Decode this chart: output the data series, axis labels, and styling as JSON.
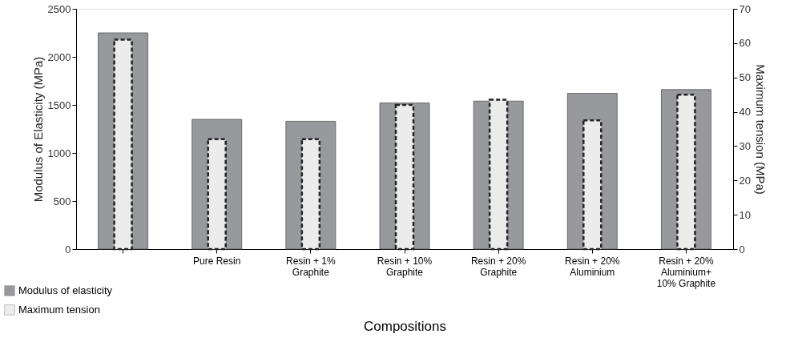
{
  "chart_data": {
    "type": "bar",
    "xlabel": "Compositions",
    "ylabel": "Modulus of Elasticity (MPa)",
    "y2label": "Maximum tension (MPa)",
    "categories": [
      null,
      "Pure Resin",
      "Resin + 1% Graphite",
      "Resin + 10% Graphite",
      "Resin + 20% Graphite",
      "Resin + 20% Aluminium",
      "Resin + 20% Aluminium+ 10% Graphite"
    ],
    "series": [
      {
        "name": "Modulus of elasticity",
        "color": "#98999d",
        "values": [
          2250,
          1350,
          1330,
          1520,
          1540,
          1620,
          1660
        ]
      },
      {
        "name": "Maximum tension",
        "color": "#ececec",
        "axis": "y2",
        "line_style": "dashed",
        "values": [
          61,
          32,
          32,
          42,
          43.5,
          37.5,
          45
        ]
      }
    ],
    "ylim": [
      0,
      2500
    ],
    "yticks": [
      0,
      500,
      1000,
      1500,
      2000,
      2500
    ],
    "y2lim": [
      0,
      70
    ],
    "y2ticks": [
      0,
      10,
      20,
      30,
      40,
      50,
      60,
      70
    ],
    "grid": false,
    "legend": "bottom left"
  }
}
